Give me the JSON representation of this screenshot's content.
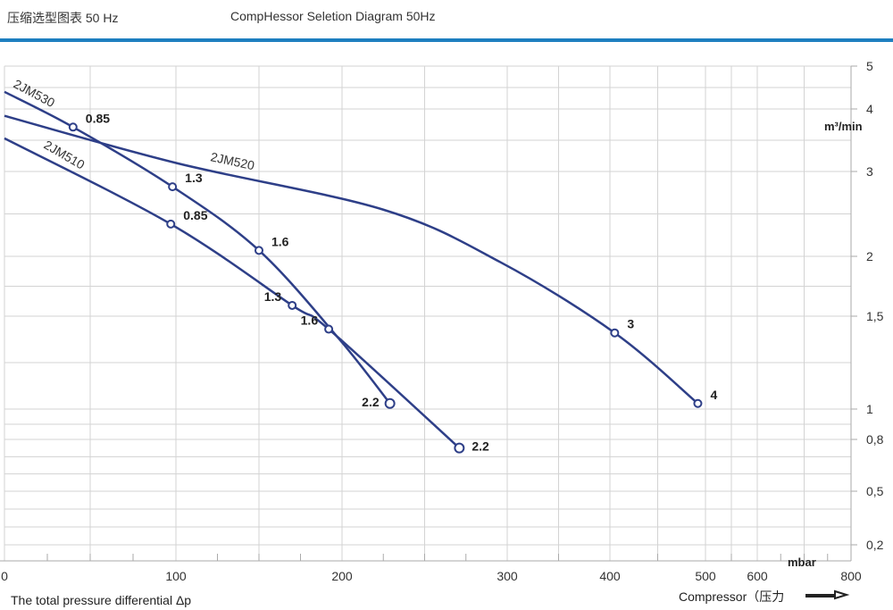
{
  "header": {
    "title_cn": "压缩选型图表 50 Hz",
    "title_en": "CompHessor Seletion Diagram 50Hz"
  },
  "chart_data": {
    "type": "line",
    "title": "CompHessor Seletion Diagram 50Hz",
    "xlabel": "The total pressure differential Δp",
    "xunit": "mbar",
    "ylabel": "m³/min",
    "x_ticks": [
      0,
      100,
      200,
      300,
      400,
      500,
      600,
      800
    ],
    "x_tick_labels": [
      "0",
      "100",
      "200",
      "300",
      "400",
      "500",
      "600",
      "800"
    ],
    "y_ticks": [
      5,
      4,
      3,
      2,
      1.5,
      1,
      0.8,
      0.5,
      0.2
    ],
    "y_tick_labels": [
      "5",
      "4",
      "3",
      "2",
      "1,5",
      "1",
      "0,8",
      "0,5",
      "0,2"
    ],
    "xlim": [
      0,
      800
    ],
    "ylim": [
      0.2,
      5
    ],
    "grid": true,
    "compressor_label": "Compressor（压力",
    "series": [
      {
        "name": "2JM530",
        "points": [
          [
            0,
            4.4
          ],
          [
            40,
            3.71
          ],
          [
            98,
            2.82
          ],
          [
            150,
            2.07
          ],
          [
            198,
            1.38
          ],
          [
            229,
            1.03
          ]
        ],
        "markers": [
          {
            "x": 40,
            "y": 3.71,
            "label": "0.85",
            "side": "right"
          },
          {
            "x": 98,
            "y": 2.82,
            "label": "1.3",
            "side": "right"
          },
          {
            "x": 150,
            "y": 2.07,
            "label": "1.6",
            "side": "right"
          },
          {
            "x": 229,
            "y": 1.03,
            "label": "2.2",
            "side": "left"
          }
        ]
      },
      {
        "name": "2JM520",
        "points": [
          [
            0,
            3.89
          ],
          [
            101,
            3.13
          ],
          [
            225,
            2.55
          ],
          [
            296,
            1.95
          ],
          [
            405,
            1.41
          ],
          [
            492,
            1.03
          ]
        ],
        "markers": [
          {
            "x": 405,
            "y": 1.41,
            "label": "3",
            "side": "right"
          },
          {
            "x": 492,
            "y": 1.03,
            "label": "4",
            "side": "right"
          }
        ]
      },
      {
        "name": "2JM510",
        "points": [
          [
            0,
            3.53
          ],
          [
            97,
            2.38
          ],
          [
            170,
            1.59
          ],
          [
            192,
            1.43
          ],
          [
            271,
            0.75
          ]
        ],
        "markers": [
          {
            "x": 97,
            "y": 2.38,
            "label": "0.85",
            "side": "right"
          },
          {
            "x": 170,
            "y": 1.59,
            "label": "1.3",
            "side": "left"
          },
          {
            "x": 192,
            "y": 1.43,
            "label": "1.6",
            "side": "left"
          },
          {
            "x": 271,
            "y": 0.75,
            "label": "2.2",
            "side": "right"
          }
        ]
      }
    ],
    "line_color": "#2e3f88"
  }
}
